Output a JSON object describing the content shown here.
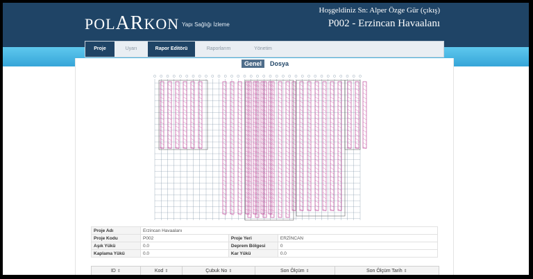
{
  "brand": {
    "part1": "POL",
    "part2": "AR",
    "part3": "KON",
    "tagline": "Yapı Sağlığı İzleme"
  },
  "user": {
    "welcome": "Hoşgeldiniz Sn: Alper Özge Gür",
    "logout": "(çıkış)"
  },
  "project": {
    "title": "P002 - Erzincan Havaalanı"
  },
  "nav": {
    "tabs": [
      {
        "label": "Proje",
        "active": true
      },
      {
        "label": "Uyarı",
        "active": false
      },
      {
        "label": "Rapor Editörü",
        "active": true
      },
      {
        "label": "Raporlarım",
        "active": false
      },
      {
        "label": "Yönetim",
        "active": false
      }
    ]
  },
  "subtabs": [
    {
      "label": "Genel",
      "active": true
    },
    {
      "label": "Dosya",
      "active": false
    }
  ],
  "info": {
    "proje_adi_label": "Proje Adı",
    "proje_adi": "Erzincan Havaalanı",
    "proje_kodu_label": "Proje Kodu",
    "proje_kodu": "P002",
    "proje_yeri_label": "Proje Yeri",
    "proje_yeri": "ERZİNCAN",
    "asik_yuku_label": "Aşık Yükü",
    "asik_yuku": "0.0",
    "deprem_bolgesi_label": "Deprem Bölgesi",
    "deprem_bolgesi": "0",
    "kaplama_yuku_label": "Kaplama Yükü",
    "kaplama_yuku": "0.0",
    "kar_yuku_label": "Kar Yükü",
    "kar_yuku": "0.0"
  },
  "table": {
    "columns": [
      "ID",
      "Kod",
      "Çubuk No",
      "Son Ölçüm",
      "Son Ölçüm Tarih"
    ],
    "sort_icon": "⇕"
  },
  "colors": {
    "header": "#1f4466",
    "band": "#4ab7e4",
    "drawing_member": "#c0499a",
    "drawing_grid": "#7a8fa3"
  }
}
